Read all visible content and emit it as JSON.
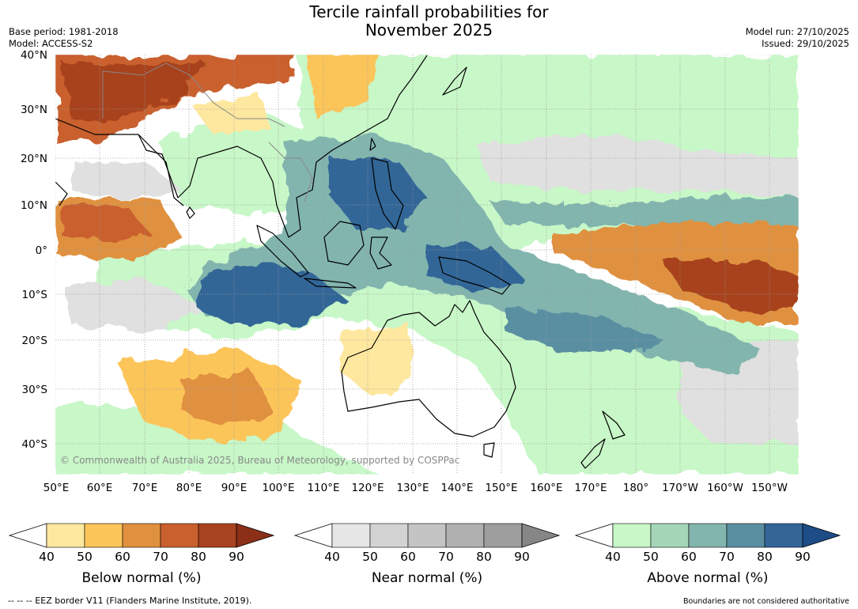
{
  "header": {
    "title_line1": "Tercile rainfall probabilities for",
    "title_line2": "November 2025",
    "base_period": "Base period: 1981-2018",
    "model": "Model: ACCESS-S2",
    "model_run": "Model run: 27/10/2025",
    "issued": "Issued: 29/10/2025"
  },
  "map": {
    "copyright": "© Commonwealth of Australia 2025, Bureau of Meteorology, supported by COSPPac",
    "lat_labels": [
      "40°N",
      "30°N",
      "20°N",
      "10°N",
      "0°",
      "10°S",
      "20°S",
      "30°S",
      "40°S"
    ],
    "lon_labels": [
      "50°E",
      "60°E",
      "70°E",
      "80°E",
      "90°E",
      "100°E",
      "110°E",
      "120°E",
      "130°E",
      "140°E",
      "150°E",
      "160°E",
      "170°E",
      "180°",
      "170°W",
      "160°W",
      "150°W"
    ]
  },
  "colorbars": [
    {
      "label": "Below normal (%)",
      "ticks": [
        "40",
        "50",
        "60",
        "70",
        "80",
        "90"
      ],
      "colors": [
        "#ffffff",
        "#fee89f",
        "#fcc55a",
        "#e0913f",
        "#c9602e",
        "#a8431f",
        "#8b2f18"
      ]
    },
    {
      "label": "Near normal (%)",
      "ticks": [
        "40",
        "50",
        "60",
        "70",
        "80",
        "90"
      ],
      "colors": [
        "#ffffff",
        "#e6e6e6",
        "#d3d3d3",
        "#c4c4c4",
        "#b0b0b0",
        "#9e9e9e",
        "#868686"
      ]
    },
    {
      "label": "Above normal (%)",
      "ticks": [
        "40",
        "50",
        "60",
        "70",
        "80",
        "90"
      ],
      "colors": [
        "#ffffff",
        "#c8f7c8",
        "#a4d6b8",
        "#82b5ae",
        "#5a8fa2",
        "#336697",
        "#1d4c86"
      ]
    }
  ],
  "footer": {
    "eez_note": "--  --  -- EEZ border V11 (Flanders Marine Institute, 2019).",
    "disclaimer": "Boundaries are not considered authoritative"
  }
}
